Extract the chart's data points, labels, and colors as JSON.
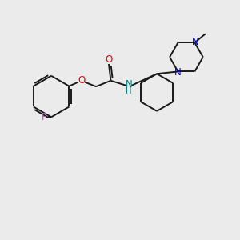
{
  "background_color": "#ebebeb",
  "bond_color": "#1a1a1a",
  "F_color": "#cc44cc",
  "O_color": "#ff0000",
  "N_color": "#0000cc",
  "NH_color": "#008080",
  "figsize": [
    3.0,
    3.0
  ],
  "dpi": 100,
  "xlim": [
    0,
    12
  ],
  "ylim": [
    0,
    12
  ]
}
